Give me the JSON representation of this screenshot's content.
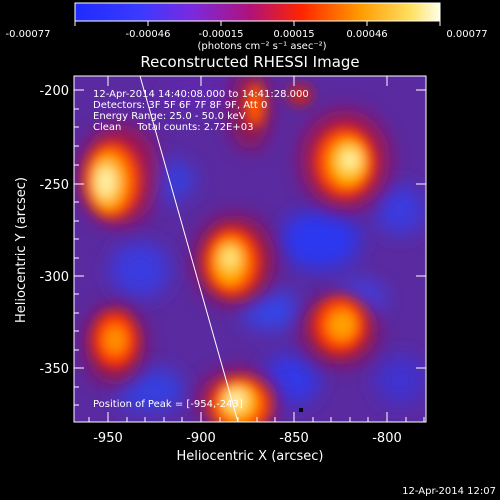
{
  "colorbar": {
    "tick_labels": [
      "-0.00077",
      "-0.00046",
      "-0.00015",
      "0.00015",
      "0.00046",
      "0.00077"
    ],
    "unit_label": "(photons cm⁻² s⁻¹ asec⁻²)"
  },
  "plot": {
    "title": "Reconstructed RHESSI Image",
    "xlabel": "Heliocentric X (arcsec)",
    "ylabel": "Heliocentric Y (arcsec)",
    "x_ticks": [
      "-950",
      "-900",
      "-850",
      "-800"
    ],
    "y_ticks": [
      "-200",
      "-250",
      "-300",
      "-350"
    ]
  },
  "info": {
    "time_range": "12-Apr-2014 14:40:08.000 to 14:41:28.000",
    "detectors": "Detectors: 3F 5F 6F 7F 8F 9F, Att 0",
    "energy": "Energy Range: 25.0 - 50.0 keV",
    "clean": "Clean     Total counts: 2.72E+03",
    "peak": "Position of Peak = [-954,-243]"
  },
  "footer": {
    "timestamp": "12-Apr-2014 12:07"
  },
  "colors": {
    "background": "#000000",
    "text": "#ffffff"
  }
}
